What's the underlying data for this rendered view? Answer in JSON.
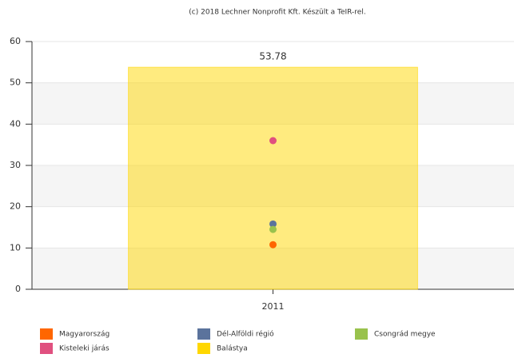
{
  "chart_data": {
    "type": "bar",
    "subtitle": "(c) 2018 Lechner Nonprofit Kft. Készült a TeIR-rel.",
    "categories": [
      "2011"
    ],
    "series": [
      {
        "name": "Magyarország",
        "color": "#ff6600",
        "type": "scatter",
        "values": [
          10.8
        ]
      },
      {
        "name": "Dél-Alföldi régió",
        "color": "#5b739c",
        "type": "scatter",
        "values": [
          15.8
        ]
      },
      {
        "name": "Csongrád megye",
        "color": "#99c24d",
        "type": "scatter",
        "values": [
          14.5
        ]
      },
      {
        "name": "Kisteleki járás",
        "color": "#e0507f",
        "type": "scatter",
        "values": [
          36
        ]
      },
      {
        "name": "Balástya",
        "color": "#ffd700",
        "type": "bar",
        "values": [
          53.78
        ]
      }
    ],
    "ylim": [
      0,
      60
    ],
    "yticks": [
      0,
      10,
      20,
      30,
      40,
      50,
      60
    ],
    "grid": true
  }
}
